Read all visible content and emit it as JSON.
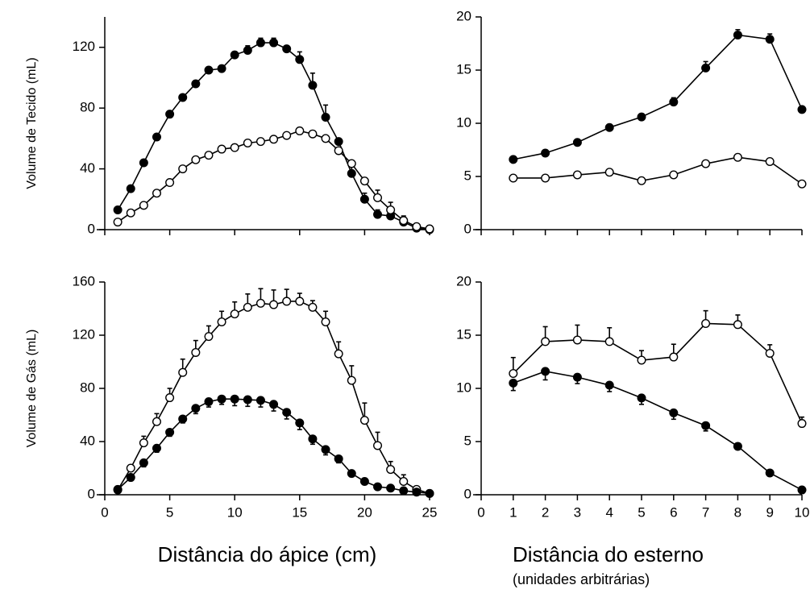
{
  "chart_data": [
    {
      "type": "line",
      "ylabel": "Volume de Tecido (mL)",
      "xlim": [
        0,
        25
      ],
      "xticks": [
        0,
        5,
        10,
        15,
        20,
        25
      ],
      "show_xtick_labels": false,
      "ylim": [
        0,
        140
      ],
      "yticks": [
        0,
        40,
        80,
        120
      ],
      "x": [
        1,
        2,
        3,
        4,
        5,
        6,
        7,
        8,
        9,
        10,
        11,
        12,
        13,
        14,
        15,
        16,
        17,
        18,
        19,
        20,
        21,
        22,
        23,
        24,
        25
      ],
      "series": [
        {
          "color": "#000000",
          "marker_fill": "#000000",
          "errors_below": false,
          "values": [
            13,
            27,
            44,
            61,
            76,
            87,
            96,
            105,
            106,
            115,
            118,
            123,
            123,
            119,
            112,
            95,
            74,
            58,
            37,
            20,
            10,
            9,
            5,
            1,
            0
          ],
          "errors": [
            null,
            null,
            null,
            null,
            null,
            null,
            null,
            null,
            2,
            null,
            3,
            3,
            3,
            null,
            5,
            8,
            8,
            null,
            6,
            4,
            3,
            3,
            null,
            null,
            null
          ]
        },
        {
          "color": "#000000",
          "marker_fill": "#ffffff",
          "errors_below": false,
          "values": [
            5,
            11,
            16,
            24,
            31,
            40,
            46,
            49,
            53,
            54,
            57,
            58,
            59.5,
            62,
            65,
            63,
            60,
            52,
            43.5,
            32,
            21,
            13,
            6,
            2,
            0.5
          ],
          "errors": [
            null,
            null,
            null,
            null,
            null,
            null,
            null,
            null,
            null,
            null,
            null,
            null,
            null,
            null,
            null,
            null,
            null,
            null,
            null,
            null,
            5,
            5,
            3,
            null,
            null
          ]
        }
      ]
    },
    {
      "type": "line",
      "xlim": [
        0,
        10
      ],
      "xticks": [
        0,
        1,
        2,
        3,
        4,
        5,
        6,
        7,
        8,
        9,
        10
      ],
      "show_xtick_labels": false,
      "ylim": [
        0,
        20
      ],
      "yticks": [
        0,
        5,
        10,
        15,
        20
      ],
      "x": [
        1,
        2,
        3,
        4,
        5,
        6,
        7,
        8,
        9,
        10
      ],
      "series": [
        {
          "color": "#000000",
          "marker_fill": "#000000",
          "errors_below": false,
          "values": [
            6.6,
            7.2,
            8.2,
            9.6,
            10.6,
            12.0,
            15.2,
            18.3,
            17.9,
            11.3
          ],
          "errors": [
            null,
            null,
            null,
            null,
            null,
            0.4,
            0.6,
            0.5,
            0.5,
            null
          ]
        },
        {
          "color": "#000000",
          "marker_fill": "#ffffff",
          "errors_below": false,
          "values": [
            4.85,
            4.85,
            5.15,
            5.4,
            4.6,
            5.15,
            6.2,
            6.8,
            6.4,
            4.3
          ],
          "errors": [
            null,
            null,
            null,
            null,
            null,
            null,
            null,
            null,
            null,
            null
          ]
        }
      ]
    },
    {
      "type": "line",
      "ylabel": "Volume de Gás (mL)",
      "xlabel": "Distância do ápice (cm)",
      "xlim": [
        0,
        25
      ],
      "xticks": [
        0,
        5,
        10,
        15,
        20,
        25
      ],
      "show_xtick_labels": true,
      "ylim": [
        0,
        160
      ],
      "yticks": [
        0,
        40,
        80,
        120,
        160
      ],
      "x": [
        1,
        2,
        3,
        4,
        5,
        6,
        7,
        8,
        9,
        10,
        11,
        12,
        13,
        14,
        15,
        16,
        17,
        18,
        19,
        20,
        21,
        22,
        23,
        24,
        25
      ],
      "series": [
        {
          "color": "#000000",
          "marker_fill": "#ffffff",
          "errors_below": false,
          "values": [
            3.6,
            20,
            39,
            55,
            73,
            92,
            107,
            119,
            130,
            136,
            141,
            144,
            143,
            145.5,
            145.5,
            141,
            130,
            106,
            86,
            56,
            37,
            19,
            10,
            4,
            1
          ],
          "errors": [
            null,
            null,
            5,
            6,
            7,
            10,
            9,
            8,
            8,
            9,
            10,
            11,
            11,
            9,
            6,
            5,
            8,
            9,
            11,
            13,
            10,
            6,
            5,
            null,
            null
          ]
        },
        {
          "color": "#000000",
          "marker_fill": "#000000",
          "errors_below": true,
          "values": [
            4,
            13,
            24,
            35,
            47,
            57,
            65,
            70,
            72,
            72,
            71.5,
            71,
            68,
            62,
            54,
            42,
            34,
            27,
            16,
            10,
            6,
            5,
            3,
            2,
            1
          ],
          "errors": [
            null,
            null,
            3,
            3,
            3,
            3,
            4,
            4,
            4,
            5,
            5,
            5,
            5,
            5,
            5,
            4,
            4,
            3,
            null,
            null,
            null,
            null,
            null,
            null,
            null
          ]
        }
      ]
    },
    {
      "type": "line",
      "xlabel": "Distância do esterno",
      "xlabel_sub": "(unidades arbitrárias)",
      "xlim": [
        0,
        10
      ],
      "xticks": [
        0,
        1,
        2,
        3,
        4,
        5,
        6,
        7,
        8,
        9,
        10
      ],
      "show_xtick_labels": true,
      "ylim": [
        0,
        20
      ],
      "yticks": [
        0,
        5,
        10,
        15,
        20
      ],
      "x": [
        1,
        2,
        3,
        4,
        5,
        6,
        7,
        8,
        9,
        10
      ],
      "series": [
        {
          "color": "#000000",
          "marker_fill": "#ffffff",
          "errors_below": false,
          "values": [
            11.4,
            14.4,
            14.55,
            14.4,
            12.65,
            12.95,
            16.1,
            16.0,
            13.3,
            6.7
          ],
          "errors": [
            1.5,
            1.4,
            1.4,
            1.3,
            0.9,
            1.2,
            1.2,
            0.9,
            0.8,
            0.6
          ]
        },
        {
          "color": "#000000",
          "marker_fill": "#000000",
          "errors_below": true,
          "values": [
            10.5,
            11.6,
            11.05,
            10.3,
            9.1,
            7.7,
            6.5,
            4.55,
            2.05,
            0.45
          ],
          "errors": [
            0.7,
            0.8,
            0.6,
            0.6,
            0.6,
            0.6,
            0.5,
            null,
            null,
            null
          ]
        }
      ]
    }
  ]
}
